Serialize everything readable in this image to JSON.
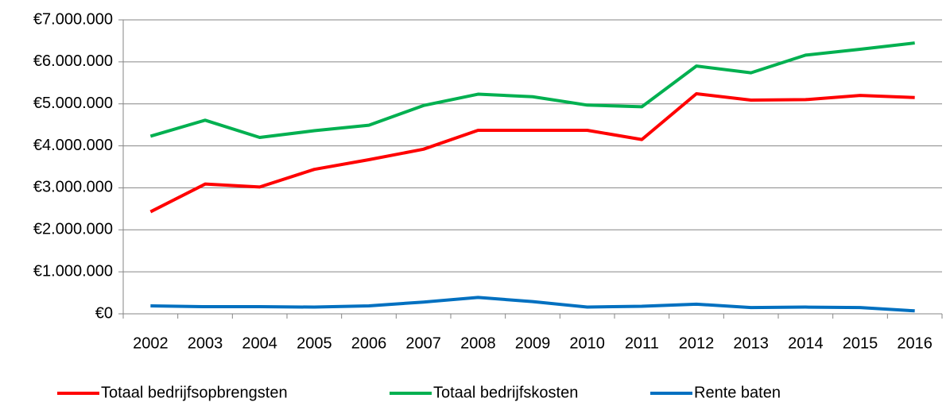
{
  "chart_data": {
    "type": "line",
    "categories": [
      "2002",
      "2003",
      "2004",
      "2005",
      "2006",
      "2007",
      "2008",
      "2009",
      "2010",
      "2011",
      "2012",
      "2013",
      "2014",
      "2015",
      "2016"
    ],
    "series": [
      {
        "name": "Totaal bedrijfsopbrengsten",
        "color": "#ff0000",
        "values": [
          2430000,
          3090000,
          3020000,
          3440000,
          3670000,
          3920000,
          4370000,
          4370000,
          4370000,
          4150000,
          5240000,
          5090000,
          5100000,
          5200000,
          5150000
        ]
      },
      {
        "name": "Totaal bedrijfskosten",
        "color": "#00b050",
        "values": [
          4230000,
          4610000,
          4200000,
          4360000,
          4490000,
          4960000,
          5230000,
          5170000,
          4970000,
          4930000,
          5900000,
          5740000,
          6160000,
          6300000,
          6450000
        ]
      },
      {
        "name": "Rente baten",
        "color": "#0070c0",
        "values": [
          190000,
          170000,
          170000,
          160000,
          190000,
          280000,
          390000,
          290000,
          160000,
          180000,
          230000,
          150000,
          160000,
          150000,
          70000
        ]
      }
    ],
    "ylim": [
      0,
      7000000
    ],
    "yticks": [
      {
        "value": 0,
        "label": "€0"
      },
      {
        "value": 1000000,
        "label": "€1.000.000"
      },
      {
        "value": 2000000,
        "label": "€2.000.000"
      },
      {
        "value": 3000000,
        "label": "€3.000.000"
      },
      {
        "value": 4000000,
        "label": "€4.000.000"
      },
      {
        "value": 5000000,
        "label": "€5.000.000"
      },
      {
        "value": 6000000,
        "label": "€6.000.000"
      },
      {
        "value": 7000000,
        "label": "€7.000.000"
      }
    ],
    "grid": true,
    "legend": "bottom"
  }
}
